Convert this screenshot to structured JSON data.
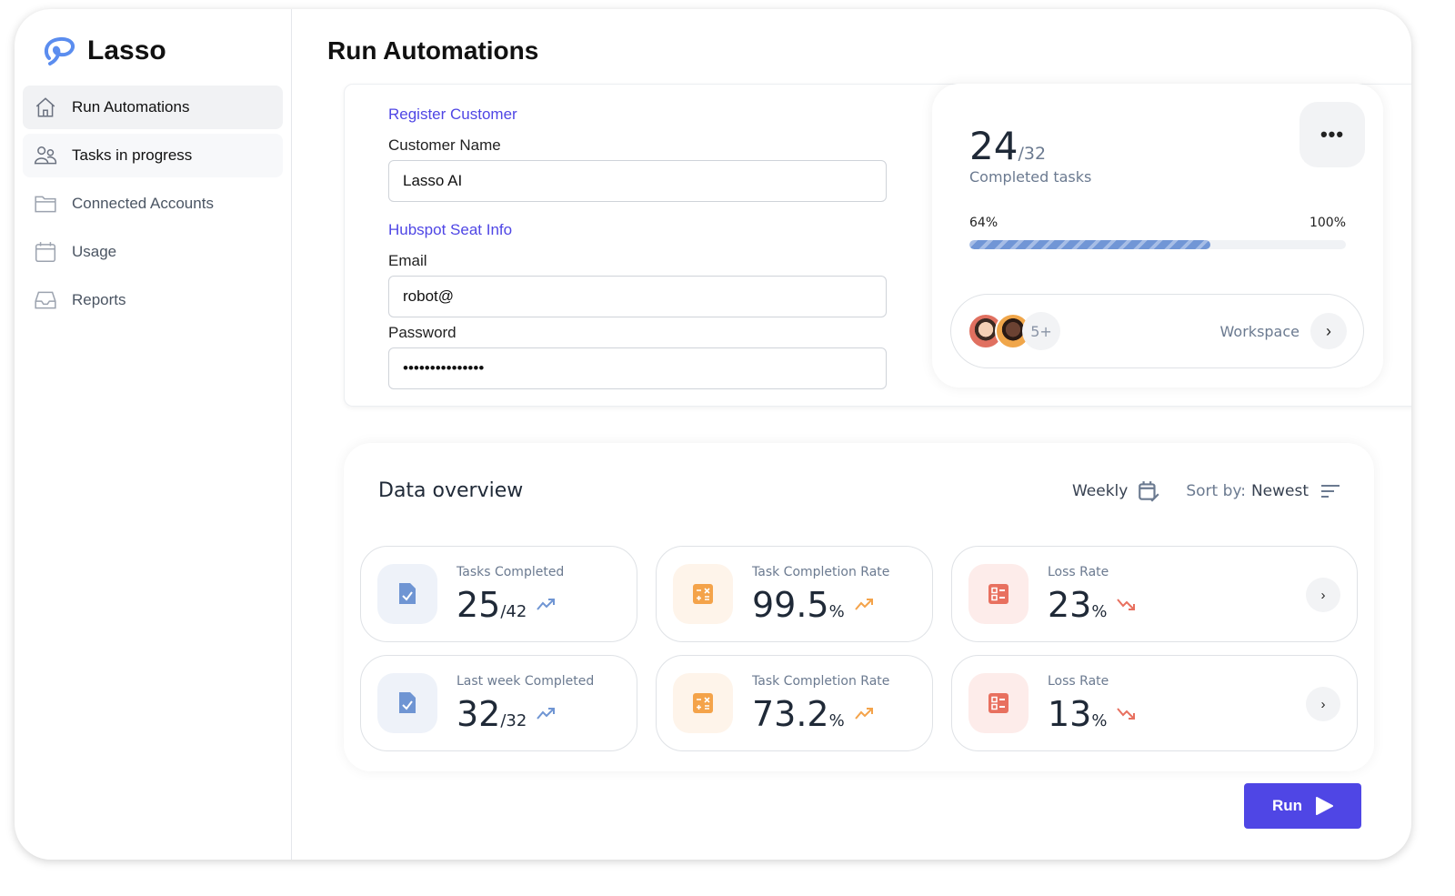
{
  "app": {
    "name": "Lasso",
    "accent": "#4f46e5"
  },
  "sidebar": {
    "items": [
      {
        "label": "Run Automations",
        "icon": "home-icon"
      },
      {
        "label": "Tasks in progress",
        "icon": "users-icon"
      },
      {
        "label": "Connected Accounts",
        "icon": "folder-icon"
      },
      {
        "label": "Usage",
        "icon": "calendar-icon"
      },
      {
        "label": "Reports",
        "icon": "inbox-icon"
      }
    ]
  },
  "page": {
    "title": "Run Automations"
  },
  "form": {
    "section1": "Register Customer",
    "customer_name_label": "Customer Name",
    "customer_name_value": "Lasso AI",
    "section2": "Hubspot Seat Info",
    "email_label": "Email",
    "email_value": "robot@",
    "password_label": "Password",
    "password_value": "•••••••••••••••"
  },
  "stats": {
    "completed": "24",
    "total": "/32",
    "caption": "Completed tasks",
    "progress_label": "64%",
    "progress_max": "100%",
    "progress": 0.64,
    "more_label": "•••",
    "extra_members": "5+",
    "workspace_label": "Workspace"
  },
  "overview": {
    "title": "Data overview",
    "period": "Weekly",
    "sort_prefix": "Sort by:",
    "sort_value": "Newest",
    "tiles": [
      {
        "title": "Tasks Completed",
        "value": "25",
        "unit": "/42",
        "trend": "up",
        "color": "#6f95d3"
      },
      {
        "title": "Task Completion Rate",
        "value": "99.5",
        "unit": "%",
        "trend": "up",
        "color": "#f4a34a"
      },
      {
        "title": "Loss Rate",
        "value": "23",
        "unit": "%",
        "trend": "down",
        "color": "#e8705f"
      },
      {
        "title": "Last week Completed",
        "value": "32",
        "unit": "/32",
        "trend": "up",
        "color": "#6f95d3"
      },
      {
        "title": "Task Completion Rate",
        "value": "73.2",
        "unit": "%",
        "trend": "up",
        "color": "#f4a34a"
      },
      {
        "title": "Loss Rate",
        "value": "13",
        "unit": "%",
        "trend": "down",
        "color": "#e8705f"
      }
    ]
  },
  "run_label": "Run"
}
